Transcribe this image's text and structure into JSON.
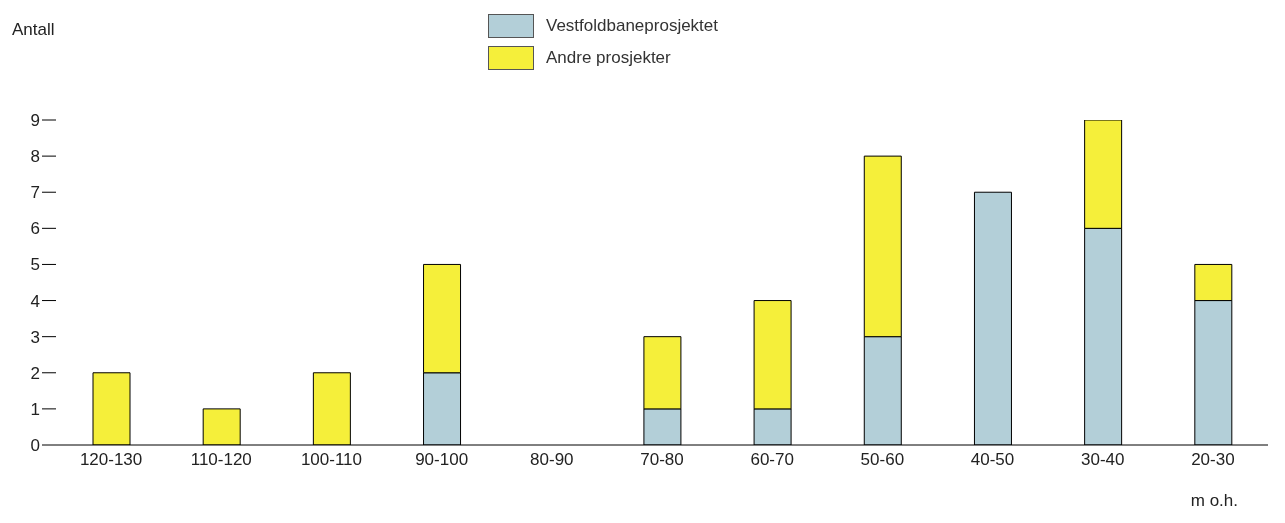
{
  "chart_data": {
    "type": "bar",
    "stacked": true,
    "ylabel": "Antall",
    "xlabel": "m o.h.",
    "categories": [
      "120-130",
      "110-120",
      "100-110",
      "90-100",
      "80-90",
      "70-80",
      "60-70",
      "50-60",
      "40-50",
      "30-40",
      "20-30"
    ],
    "series": [
      {
        "name": "Vestfoldbaneprosjektet",
        "color": "#b3cfd8",
        "values": [
          0,
          0,
          0,
          2,
          0,
          1,
          1,
          3,
          7,
          6,
          4
        ]
      },
      {
        "name": "Andre prosjekter",
        "color": "#f5ef3a",
        "values": [
          2,
          1,
          2,
          3,
          0,
          2,
          3,
          5,
          0,
          3,
          1
        ]
      }
    ],
    "ylim": [
      0,
      9
    ],
    "yticks": [
      0,
      1,
      2,
      3,
      4,
      5,
      6,
      7,
      8,
      9
    ],
    "grid": false,
    "legend": "top"
  }
}
